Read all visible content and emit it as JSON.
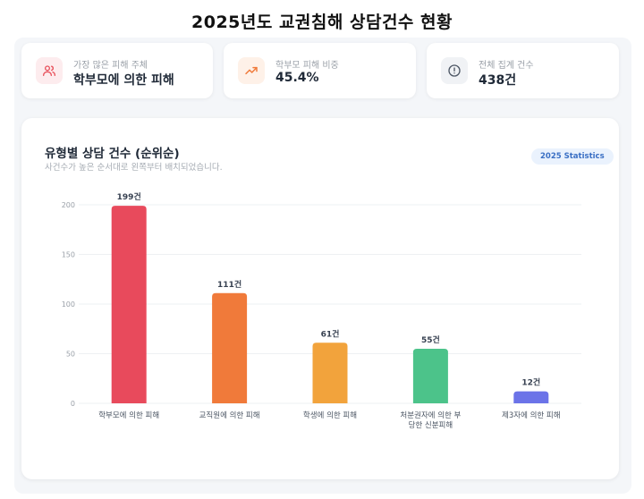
{
  "page_title": "2025년도 교권침해 상담건수 현황",
  "stats": [
    {
      "label": "가장 많은 피해 주체",
      "value": "학부모에 의한 피해",
      "icon": "users-icon",
      "color": "#e8505b",
      "bg": "#fdecee"
    },
    {
      "label": "학부모 피해 비중",
      "value": "45.4%",
      "icon": "trending-up-icon",
      "color": "#f07a3a",
      "bg": "#fef1e8"
    },
    {
      "label": "전체 집계 건수",
      "value": "438건",
      "icon": "alert-circle-icon",
      "color": "#4b5563",
      "bg": "#f0f2f5"
    }
  ],
  "chart_card": {
    "title": "유형별 상담 건수 (순위순)",
    "subtitle": "사건수가 높은 순서대로 왼쪽부터 배치되었습니다.",
    "badge": "2025 Statistics"
  },
  "chart_data": {
    "type": "bar",
    "categories": [
      [
        "학부모에 의한 피해"
      ],
      [
        "교직원에 의한 피해"
      ],
      [
        "학생에 의한 피해"
      ],
      [
        "처분권자에 의한 부",
        "당한 신분피해"
      ],
      [
        "제3자에 의한 피해"
      ]
    ],
    "values": [
      199,
      111,
      61,
      55,
      12
    ],
    "value_labels": [
      "199건",
      "111건",
      "61건",
      "55건",
      "12건"
    ],
    "colors": [
      "#e84a5c",
      "#f07a3a",
      "#f2a33c",
      "#4cc38a",
      "#6b73e8"
    ],
    "yticks": [
      "0",
      "50",
      "100",
      "150",
      "200"
    ],
    "ylim": [
      0,
      200
    ],
    "grid": true,
    "title": "유형별 상담 건수 (순위순)",
    "xlabel": "",
    "ylabel": ""
  }
}
